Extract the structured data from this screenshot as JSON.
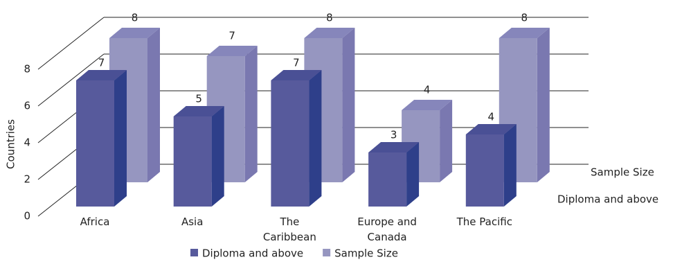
{
  "chart_data": {
    "type": "bar3d",
    "y_axis_label": "Countries",
    "categories": [
      "Africa",
      "Asia",
      "The Caribbean",
      "Europe and Canada",
      "The Pacific"
    ],
    "series": [
      {
        "name": "Diploma and above",
        "color": "#575a9c",
        "values": [
          7,
          5,
          7,
          3,
          4
        ]
      },
      {
        "name": "Sample Size",
        "color": "#9696c0",
        "values": [
          8,
          7,
          8,
          4,
          8
        ]
      }
    ],
    "ylim": [
      0,
      8
    ],
    "yticks": [
      0,
      2,
      4,
      6,
      8
    ],
    "grid": true,
    "legend": "bottom"
  }
}
